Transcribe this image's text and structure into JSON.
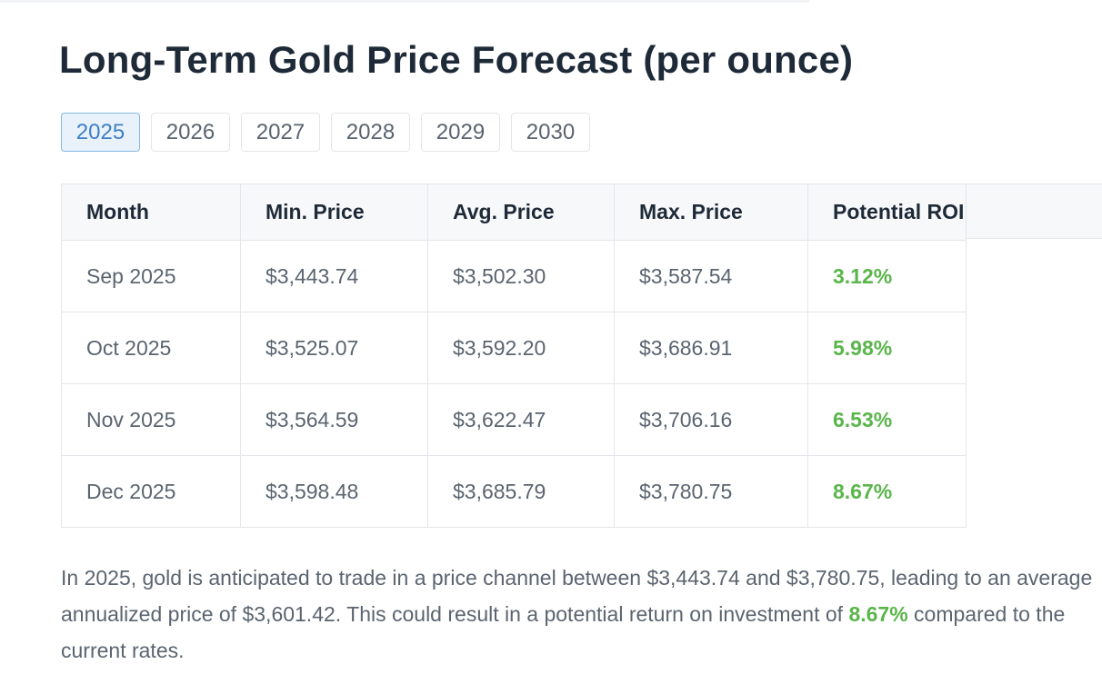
{
  "page": {
    "title": "Long-Term Gold Price Forecast (per ounce)"
  },
  "tabs": [
    "2025",
    "2026",
    "2027",
    "2028",
    "2029",
    "2030"
  ],
  "active_tab": "2025",
  "table": {
    "headers": [
      "Month",
      "Min. Price",
      "Avg. Price",
      "Max. Price",
      "Potential ROI"
    ],
    "rows": [
      {
        "month": "Sep 2025",
        "min": "$3,443.74",
        "avg": "$3,502.30",
        "max": "$3,587.54",
        "roi": "3.12%"
      },
      {
        "month": "Oct 2025",
        "min": "$3,525.07",
        "avg": "$3,592.20",
        "max": "$3,686.91",
        "roi": "5.98%"
      },
      {
        "month": "Nov 2025",
        "min": "$3,564.59",
        "avg": "$3,622.47",
        "max": "$3,706.16",
        "roi": "6.53%"
      },
      {
        "month": "Dec 2025",
        "min": "$3,598.48",
        "avg": "$3,685.79",
        "max": "$3,780.75",
        "roi": "8.67%"
      }
    ]
  },
  "summary": {
    "text_before": "In 2025, gold is anticipated to trade in a price channel between $3,443.74 and $3,780.75, leading to an average annualized price of $3,601.42. This could result in a potential return on investment of ",
    "roi": "8.67%",
    "text_after": " compared to the current rates."
  },
  "colors": {
    "roi_green": "#5ab54b",
    "active_tab_blue": "#3f7fc4",
    "title_dark": "#1e2a38",
    "body_gray": "#5b6470"
  }
}
